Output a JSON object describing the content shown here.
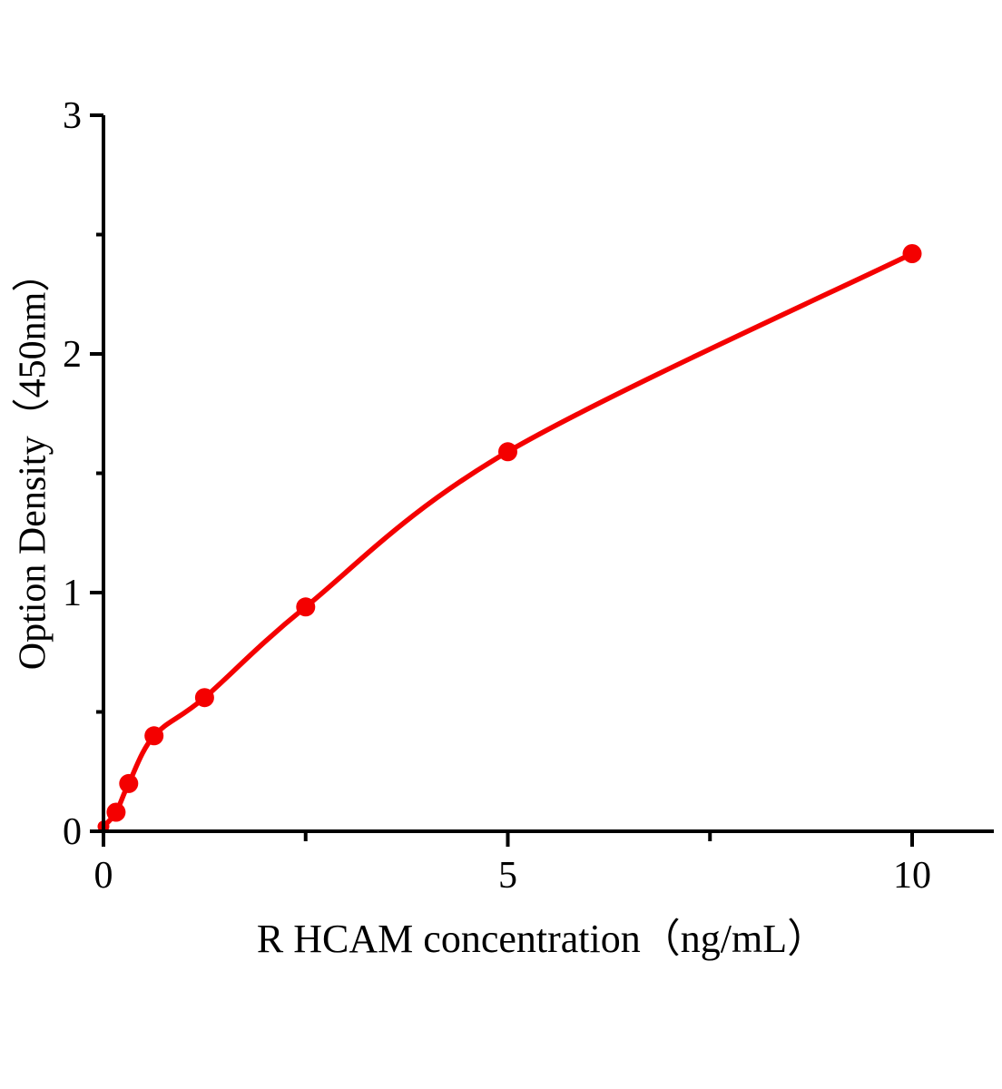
{
  "chart_data": {
    "type": "scatter",
    "title": "",
    "xlabel": "R HCAM  concentration（ng/mL）",
    "ylabel": "Option Density（450nm）",
    "x": [
      0,
      0.156,
      0.312,
      0.625,
      1.25,
      2.5,
      5,
      10
    ],
    "y": [
      0.02,
      0.08,
      0.2,
      0.4,
      0.56,
      0.94,
      1.59,
      2.42
    ],
    "xlim": [
      0,
      11
    ],
    "ylim": [
      0,
      3
    ],
    "x_major_ticks": [
      0,
      5,
      10
    ],
    "x_minor_ticks": [
      2.5,
      7.5
    ],
    "y_major_ticks": [
      0,
      1,
      2,
      3
    ],
    "y_minor_ticks": [
      0.5,
      1.5,
      2.5
    ],
    "x_tick_labels": [
      "0",
      "5",
      "10"
    ],
    "y_tick_labels": [
      "0",
      "1",
      "2",
      "3"
    ],
    "legend": [],
    "grid": "off",
    "fit": "smooth curve through points (saturating power-law standard curve)",
    "colors": {
      "point_color": "#f40000",
      "line_color": "#f40000",
      "axis_color": "#000000",
      "text_color": "#000000",
      "background": "#ffffff"
    }
  }
}
